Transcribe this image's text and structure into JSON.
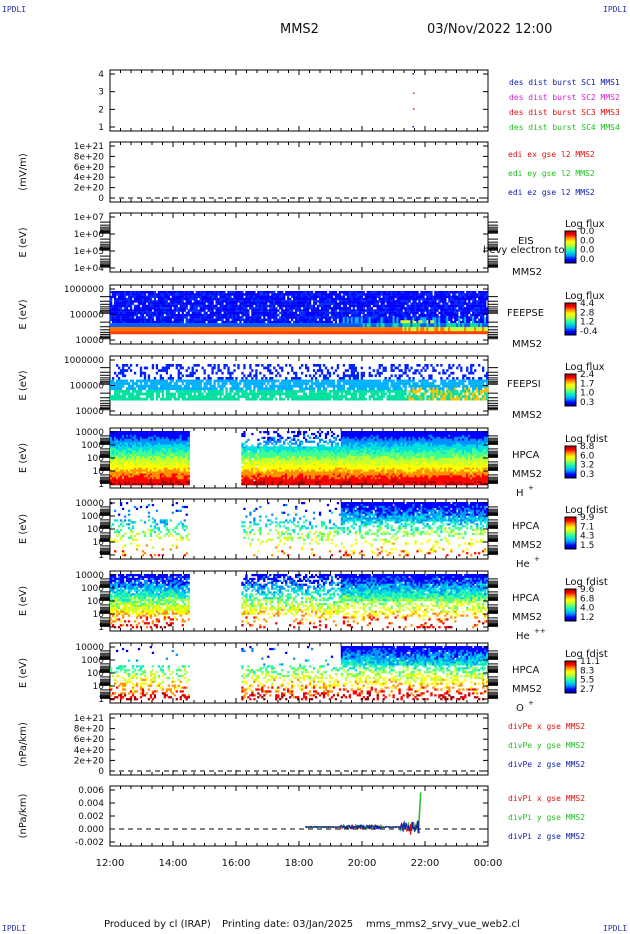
{
  "header": {
    "corner_label": "IPDLI",
    "spacecraft": "MMS2",
    "datetime": "03/Nov/2022 12:00"
  },
  "footer": {
    "produced_by": "Produced by cl (IRAP)",
    "printing_date": "Printing date: 03/Jan/2025",
    "filename": "mms_mms2_srvy_vue_web2.cl"
  },
  "colors": {
    "series_blue": "#1020b0",
    "series_magenta": "#d020d0",
    "series_red": "#e01010",
    "series_green": "#20c020",
    "colorscale": [
      "#000090",
      "#0000ff",
      "#0090ff",
      "#00e0e0",
      "#40ff90",
      "#c0ff30",
      "#ffff00",
      "#ff9000",
      "#ff0000",
      "#a00000"
    ]
  },
  "chart_data": {
    "type": "panel-stack",
    "x_ticks": [
      "12:00",
      "14:00",
      "16:00",
      "18:00",
      "20:00",
      "22:00",
      "00:00"
    ],
    "x_range_hours": [
      12,
      24
    ],
    "panels": [
      {
        "id": "burst",
        "type": "scatter",
        "ylabel": "",
        "yticks": [
          "4",
          "3",
          "2",
          "1"
        ],
        "ylim": [
          0.5,
          4.5
        ],
        "legend": [
          {
            "text": "des dist burst SC1 MMS1",
            "color": "#1020b0"
          },
          {
            "text": "des dist burst SC2 MMS2",
            "color": "#d020d0"
          },
          {
            "text": "des dist burst SC3 MMS3",
            "color": "#e01010"
          },
          {
            "text": "des dist burst SC4 MMS4",
            "color": "#20c020"
          }
        ],
        "points": [
          {
            "t": 21.6,
            "y": 4,
            "color": "#1020b0"
          },
          {
            "t": 21.62,
            "y": 2.9,
            "color": "#d020d0"
          },
          {
            "t": 21.62,
            "y": 2.0,
            "color": "#e01010"
          },
          {
            "t": 21.6,
            "y": 1.0,
            "color": "#1020b0"
          }
        ]
      },
      {
        "id": "edi",
        "type": "line",
        "ylabel": "(mV/m)",
        "yticks": [
          "1e+21",
          "8e+20",
          "6e+20",
          "4e+20",
          "2e+20",
          "0"
        ],
        "legend": [
          {
            "text": "edi ex gse l2 MMS2",
            "color": "#e01010"
          },
          {
            "text": "edi ey gse l2 MMS2",
            "color": "#20c020"
          },
          {
            "text": "edi ez gse l2 MMS2",
            "color": "#1020b0"
          }
        ],
        "zero_line": true
      },
      {
        "id": "eis",
        "type": "heatmap",
        "ylabel": "E (eV)",
        "yticks": [
          "1e+07",
          "1e+06",
          "1e+05",
          "1e+04"
        ],
        "instrument": "EIS",
        "sub_label": "MMS2",
        "overlay_label": "hevy electron to",
        "cbar_title": "Log flux",
        "cbar_ticks": [
          "0.0",
          "0.0",
          "0.0",
          "0.0"
        ]
      },
      {
        "id": "feepse",
        "type": "heatmap",
        "ylabel": "E (eV)",
        "yticks": [
          "1000000",
          "100000",
          "10000"
        ],
        "instrument": "FEEPSE",
        "sub_label": "MMS2",
        "cbar_title": "Log flux",
        "cbar_ticks": [
          "4.4",
          "2.8",
          "1.2",
          "-0.4"
        ]
      },
      {
        "id": "feepsi",
        "type": "heatmap",
        "ylabel": "E (eV)",
        "yticks": [
          "1000000",
          "100000",
          "10000"
        ],
        "instrument": "FEEPSI",
        "sub_label": "MMS2",
        "cbar_title": "Log flux",
        "cbar_ticks": [
          "2.4",
          "1.7",
          "1.0",
          "0.3"
        ]
      },
      {
        "id": "hpca_h",
        "type": "heatmap",
        "ylabel": "E (eV)",
        "yticks": [
          "10000",
          "1000",
          "100",
          "10",
          "1"
        ],
        "instrument": "HPCA",
        "sub_label": "MMS2",
        "species": "H",
        "charge": "+",
        "cbar_title": "Log fdist",
        "cbar_ticks": [
          "8.8",
          "6.0",
          "3.2",
          "0.3"
        ],
        "gap_hours": [
          14.5,
          16.15
        ]
      },
      {
        "id": "hpca_he1",
        "type": "heatmap",
        "ylabel": "E (eV)",
        "yticks": [
          "10000",
          "1000",
          "100",
          "10",
          "1"
        ],
        "instrument": "HPCA",
        "sub_label": "MMS2",
        "species": "He",
        "charge": "+",
        "cbar_title": "Log fdist",
        "cbar_ticks": [
          "9.9",
          "7.1",
          "4.3",
          "1.5"
        ],
        "gap_hours": [
          14.5,
          16.15
        ]
      },
      {
        "id": "hpca_he2",
        "type": "heatmap",
        "ylabel": "E (eV)",
        "yticks": [
          "10000",
          "1000",
          "100",
          "10",
          "1"
        ],
        "instrument": "HPCA",
        "sub_label": "MMS2",
        "species": "He",
        "charge": "++",
        "cbar_title": "Log fdist",
        "cbar_ticks": [
          "9.6",
          "6.8",
          "4.0",
          "1.2"
        ],
        "gap_hours": [
          14.5,
          16.15
        ]
      },
      {
        "id": "hpca_o",
        "type": "heatmap",
        "ylabel": "E (eV)",
        "yticks": [
          "10000",
          "1000",
          "100",
          "10",
          "1"
        ],
        "instrument": "HPCA",
        "sub_label": "MMS2",
        "species": "O",
        "charge": "+",
        "cbar_title": "Log fdist",
        "cbar_ticks": [
          "11.1",
          "8.3",
          "5.5",
          "2.7"
        ],
        "gap_hours": [
          14.5,
          16.15
        ]
      },
      {
        "id": "divpe",
        "type": "line",
        "ylabel": "(nPa/km)",
        "yticks": [
          "1e+21",
          "8e+20",
          "6e+20",
          "4e+20",
          "2e+20",
          "0"
        ],
        "legend": [
          {
            "text": "divPe x gse MMS2",
            "color": "#e01010"
          },
          {
            "text": "divPe y gse MMS2",
            "color": "#20c020"
          },
          {
            "text": "divPe z gse MMS2",
            "color": "#1020b0"
          }
        ],
        "zero_line": true
      },
      {
        "id": "divpi",
        "type": "line",
        "ylabel": "(nPa/km)",
        "yticks": [
          "0.006",
          "0.004",
          "0.002",
          "0.000",
          "-0.002"
        ],
        "ylim": [
          -0.003,
          0.0065
        ],
        "legend": [
          {
            "text": "divPi x gse MMS2",
            "color": "#e01010"
          },
          {
            "text": "divPi y gse MMS2",
            "color": "#20c020"
          },
          {
            "text": "divPi z gse MMS2",
            "color": "#1020b0"
          }
        ],
        "zero_line": true,
        "active_range_hours": [
          18.2,
          21.8
        ],
        "spike_hour": 21.8,
        "spike_max": 0.0055
      }
    ]
  }
}
